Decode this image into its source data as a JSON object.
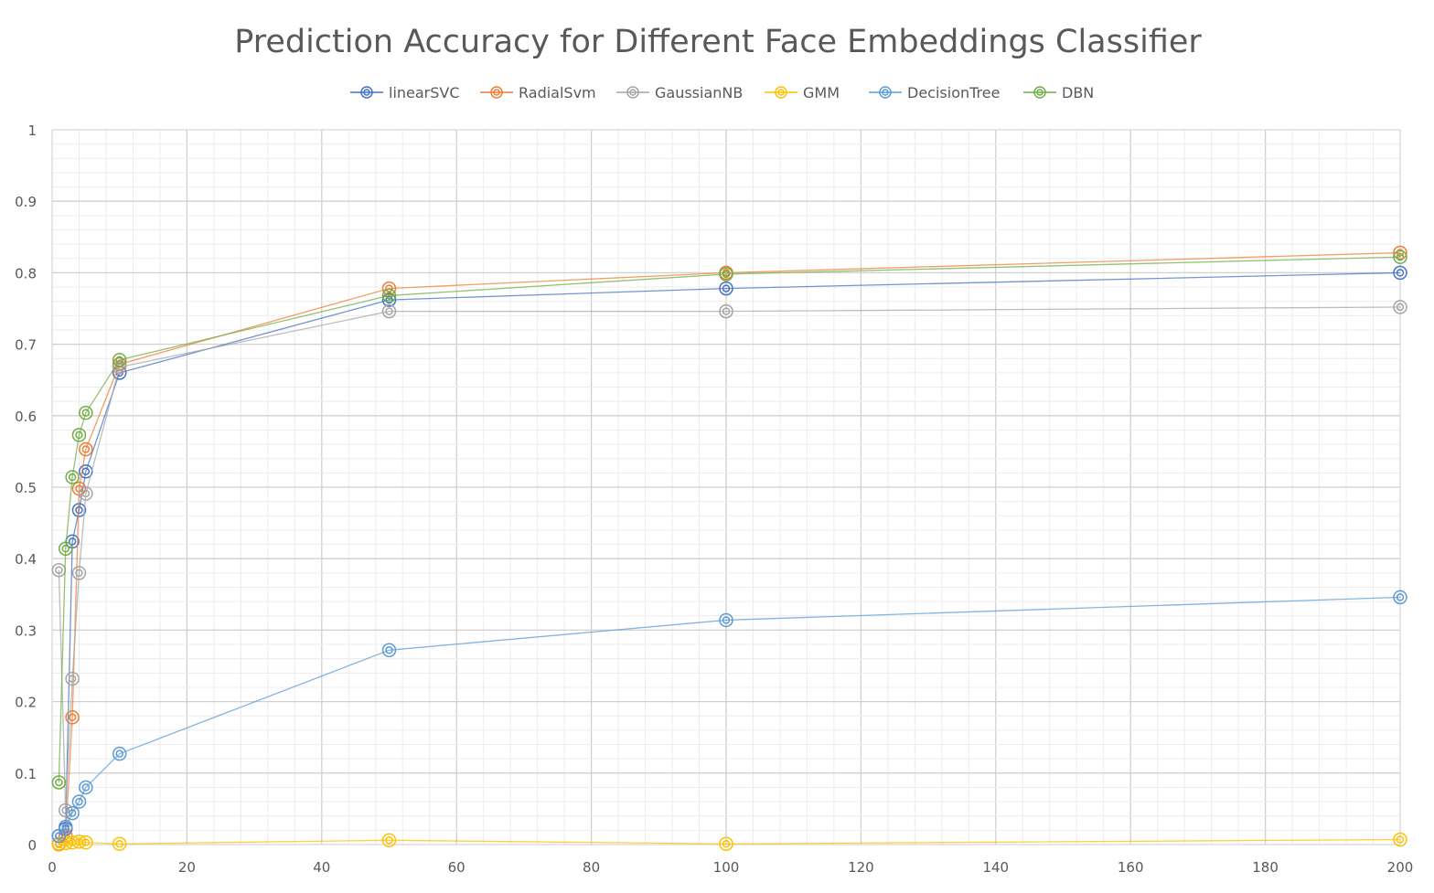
{
  "chart_data": {
    "type": "scatter",
    "title": "Prediction Accuracy for Different Face Embeddings Classifier",
    "xlabel": "",
    "ylabel": "",
    "xlim": [
      0,
      200
    ],
    "ylim": [
      0,
      1
    ],
    "x_ticks": [
      "0",
      "20",
      "40",
      "60",
      "80",
      "100",
      "120",
      "140",
      "160",
      "180",
      "200"
    ],
    "y_ticks": [
      "0",
      "0.1",
      "0.2",
      "0.3",
      "0.4",
      "0.5",
      "0.6",
      "0.7",
      "0.8",
      "0.9",
      "1"
    ],
    "grid": true,
    "legend_position": "top",
    "x": [
      1,
      2,
      3,
      4,
      5,
      10,
      50,
      100,
      200
    ],
    "series": [
      {
        "name": "linearSVC",
        "color": "#4472c4",
        "values": [
          0.012,
          0.022,
          0.424,
          0.468,
          0.522,
          0.66,
          0.762,
          0.778,
          0.8
        ]
      },
      {
        "name": "RadialSvm",
        "color": "#ed7d31",
        "values": [
          0.001,
          0.012,
          0.178,
          0.498,
          0.553,
          0.672,
          0.778,
          0.8,
          0.828
        ]
      },
      {
        "name": "GaussianNB",
        "color": "#a5a5a5",
        "values": [
          0.384,
          0.048,
          0.232,
          0.38,
          0.491,
          0.668,
          0.746,
          0.746,
          0.752
        ]
      },
      {
        "name": "GMM",
        "color": "#ffc000",
        "values": [
          0.0,
          0.002,
          0.003,
          0.004,
          0.003,
          0.001,
          0.006,
          0.001,
          0.007
        ]
      },
      {
        "name": "DecisionTree",
        "color": "#5b9bd5",
        "values": [
          0.012,
          0.025,
          0.044,
          0.06,
          0.08,
          0.127,
          0.272,
          0.314,
          0.346
        ]
      },
      {
        "name": "DBN",
        "color": "#70ad47",
        "values": [
          0.087,
          0.414,
          0.514,
          0.573,
          0.604,
          0.678,
          0.768,
          0.798,
          0.822
        ]
      }
    ]
  }
}
